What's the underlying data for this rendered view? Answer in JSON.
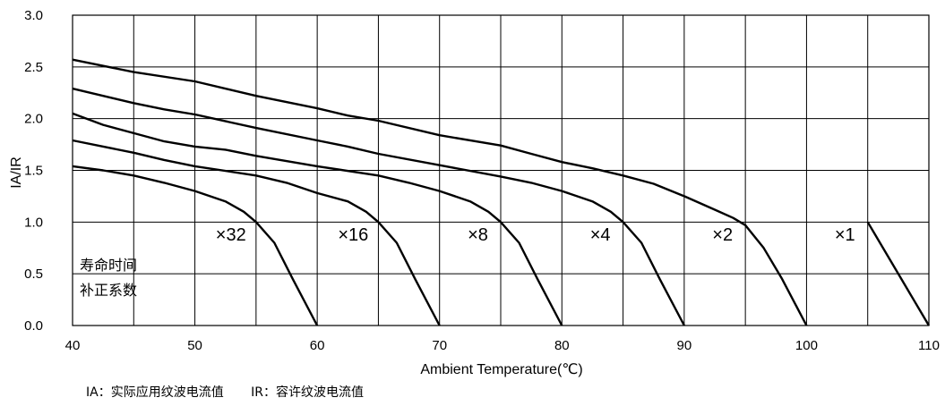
{
  "chart_data": {
    "type": "line",
    "xlabel": "Ambient Temperature(℃)",
    "ylabel": "IA/IR",
    "xlim": [
      40,
      110
    ],
    "ylim": [
      0.0,
      3.0
    ],
    "x_ticks": [
      "40",
      "50",
      "60",
      "70",
      "80",
      "90",
      "100",
      "110"
    ],
    "y_ticks": [
      "0.0",
      "0.5",
      "1.0",
      "1.5",
      "2.0",
      "2.5",
      "3.0"
    ],
    "grid": true,
    "series": [
      {
        "name": "×32",
        "points": [
          [
            40,
            1.54
          ],
          [
            42.5,
            1.5
          ],
          [
            45,
            1.45
          ],
          [
            47.5,
            1.38
          ],
          [
            50,
            1.3
          ],
          [
            52.5,
            1.2
          ],
          [
            54,
            1.1
          ],
          [
            55,
            1.0
          ],
          [
            56.5,
            0.8
          ],
          [
            58,
            0.45
          ],
          [
            60,
            0.0
          ]
        ]
      },
      {
        "name": "×16",
        "points": [
          [
            40,
            1.79
          ],
          [
            45,
            1.67
          ],
          [
            47.5,
            1.6
          ],
          [
            50,
            1.54
          ],
          [
            55,
            1.45
          ],
          [
            57.5,
            1.38
          ],
          [
            60,
            1.28
          ],
          [
            62.5,
            1.2
          ],
          [
            64,
            1.1
          ],
          [
            65,
            1.0
          ],
          [
            66.5,
            0.8
          ],
          [
            68,
            0.45
          ],
          [
            70,
            0.0
          ]
        ]
      },
      {
        "name": "×8",
        "points": [
          [
            40,
            2.05
          ],
          [
            42.5,
            1.94
          ],
          [
            45,
            1.86
          ],
          [
            47.5,
            1.78
          ],
          [
            50,
            1.73
          ],
          [
            52.5,
            1.7
          ],
          [
            55,
            1.64
          ],
          [
            60,
            1.54
          ],
          [
            65,
            1.45
          ],
          [
            67.5,
            1.38
          ],
          [
            70,
            1.3
          ],
          [
            72.5,
            1.2
          ],
          [
            74,
            1.1
          ],
          [
            75,
            1.0
          ],
          [
            76.5,
            0.8
          ],
          [
            78,
            0.45
          ],
          [
            80,
            0.0
          ]
        ]
      },
      {
        "name": "×4",
        "points": [
          [
            40,
            2.29
          ],
          [
            45,
            2.15
          ],
          [
            47.5,
            2.09
          ],
          [
            50,
            2.04
          ],
          [
            55,
            1.91
          ],
          [
            60,
            1.79
          ],
          [
            62.5,
            1.73
          ],
          [
            65,
            1.66
          ],
          [
            70,
            1.55
          ],
          [
            75,
            1.44
          ],
          [
            77.5,
            1.38
          ],
          [
            80,
            1.3
          ],
          [
            82.5,
            1.2
          ],
          [
            84,
            1.1
          ],
          [
            85,
            1.0
          ],
          [
            86.5,
            0.8
          ],
          [
            88,
            0.45
          ],
          [
            90,
            0.0
          ]
        ]
      },
      {
        "name": "×2",
        "points": [
          [
            40,
            2.57
          ],
          [
            45,
            2.45
          ],
          [
            50,
            2.36
          ],
          [
            55,
            2.22
          ],
          [
            60,
            2.1
          ],
          [
            62.5,
            2.03
          ],
          [
            65,
            1.98
          ],
          [
            70,
            1.84
          ],
          [
            75,
            1.74
          ],
          [
            77.5,
            1.66
          ],
          [
            80,
            1.58
          ],
          [
            82.5,
            1.52
          ],
          [
            85,
            1.45
          ],
          [
            87.5,
            1.37
          ],
          [
            90,
            1.25
          ],
          [
            92.5,
            1.12
          ],
          [
            94,
            1.04
          ],
          [
            95,
            0.97
          ],
          [
            96.5,
            0.75
          ],
          [
            98,
            0.45
          ],
          [
            100,
            0.0
          ]
        ]
      },
      {
        "name": "×1",
        "points": [
          [
            105,
            1.0
          ],
          [
            110,
            0.0
          ]
        ]
      }
    ],
    "curve_labels": [
      {
        "text": "×32",
        "x": 51.7,
        "y": 0.82
      },
      {
        "text": "×16",
        "x": 61.7,
        "y": 0.82
      },
      {
        "text": "×8",
        "x": 72.3,
        "y": 0.82
      },
      {
        "text": "×4",
        "x": 82.3,
        "y": 0.82
      },
      {
        "text": "×2",
        "x": 92.3,
        "y": 0.82
      },
      {
        "text": "×1",
        "x": 102.3,
        "y": 0.82
      }
    ],
    "annotation": [
      "寿命时间",
      "补正系数"
    ],
    "footnote": [
      "IA：实际应用纹波电流值",
      "IR：容许纹波电流值"
    ]
  }
}
